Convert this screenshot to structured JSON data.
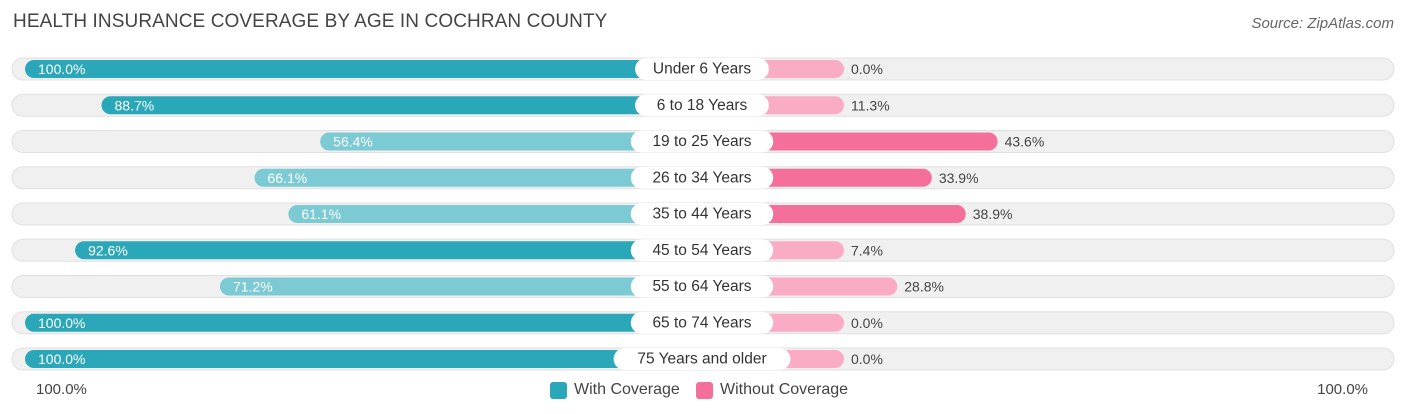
{
  "chart_data": {
    "type": "bar",
    "orientation": "horizontal-diverging",
    "title": "HEALTH INSURANCE COVERAGE BY AGE IN COCHRAN COUNTY",
    "source": "Source: ZipAtlas.com",
    "categories": [
      "Under 6 Years",
      "6 to 18 Years",
      "19 to 25 Years",
      "26 to 34 Years",
      "35 to 44 Years",
      "45 to 54 Years",
      "55 to 64 Years",
      "65 to 74 Years",
      "75 Years and older"
    ],
    "series": [
      {
        "name": "With Coverage",
        "values": [
          100.0,
          88.7,
          56.4,
          66.1,
          61.1,
          92.6,
          71.2,
          100.0,
          100.0
        ],
        "labels": [
          "100.0%",
          "88.7%",
          "56.4%",
          "66.1%",
          "61.1%",
          "92.6%",
          "71.2%",
          "100.0%",
          "100.0%"
        ]
      },
      {
        "name": "Without Coverage",
        "values": [
          0.0,
          11.3,
          43.6,
          33.9,
          38.9,
          7.4,
          28.8,
          0.0,
          0.0
        ],
        "labels": [
          "0.0%",
          "11.3%",
          "43.6%",
          "33.9%",
          "38.9%",
          "7.4%",
          "28.8%",
          "0.0%",
          "0.0%"
        ]
      }
    ],
    "xlim": [
      0,
      100
    ],
    "axis_left_label": "100.0%",
    "axis_right_label": "100.0%",
    "legend_position": "bottom-center",
    "colors": {
      "with_strong": "#2aa7b8",
      "with_light": "#7ccad3",
      "without_strong": "#f4709b",
      "without_light": "#f9acc4",
      "row_bg": "#f0f0f0",
      "row_border": "#e0e0e0"
    }
  }
}
